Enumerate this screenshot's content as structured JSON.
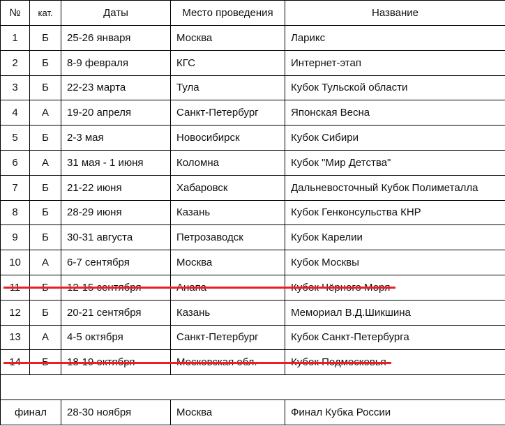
{
  "headers": {
    "num": "№",
    "cat": "кат.",
    "dates": "Даты",
    "place": "Место проведения",
    "name": "Название"
  },
  "rows": [
    {
      "num": "1",
      "cat": "Б",
      "dates": "25-26 января",
      "place": "Москва",
      "name": "Ларикс",
      "cancelled": false
    },
    {
      "num": "2",
      "cat": "Б",
      "dates": "8-9 февраля",
      "place": "КГС",
      "name": "Интернет-этап",
      "cancelled": false
    },
    {
      "num": "3",
      "cat": "Б",
      "dates": "22-23 марта",
      "place": "Тула",
      "name": "Кубок Тульской области",
      "cancelled": false
    },
    {
      "num": "4",
      "cat": "А",
      "dates": "19-20 апреля",
      "place": "Санкт-Петербург",
      "name": "Японская Весна",
      "cancelled": false
    },
    {
      "num": "5",
      "cat": "Б",
      "dates": "2-3 мая",
      "place": "Новосибирск",
      "name": "Кубок Сибири",
      "cancelled": false
    },
    {
      "num": "6",
      "cat": "А",
      "dates": "31 мая - 1 июня",
      "place": "Коломна",
      "name": "Кубок \"Мир Детства\"",
      "cancelled": false
    },
    {
      "num": "7",
      "cat": "Б",
      "dates": "21-22 июня",
      "place": "Хабаровск",
      "name": "Дальневосточный Кубок Полиметалла",
      "cancelled": false
    },
    {
      "num": "8",
      "cat": "Б",
      "dates": "28-29 июня",
      "place": "Казань",
      "name": "Кубок Генконсульства КНР",
      "cancelled": false
    },
    {
      "num": "9",
      "cat": "Б",
      "dates": "30-31 августа",
      "place": "Петрозаводск",
      "name": "Кубок Карелии",
      "cancelled": false
    },
    {
      "num": "10",
      "cat": "А",
      "dates": "6-7 сентября",
      "place": "Москва",
      "name": "Кубок Москвы",
      "cancelled": false
    },
    {
      "num": "11",
      "cat": "Б",
      "dates": "12-15 сентября",
      "place": "Анапа",
      "name": "Кубок Чёрного Моря",
      "cancelled": true
    },
    {
      "num": "12",
      "cat": "Б",
      "dates": "20-21 сентября",
      "place": "Казань",
      "name": "Мемориал В.Д.Шикшина",
      "cancelled": false
    },
    {
      "num": "13",
      "cat": "А",
      "dates": "4-5 октября",
      "place": "Санкт-Петербург",
      "name": "Кубок Санкт-Петербурга",
      "cancelled": false
    },
    {
      "num": "14",
      "cat": "Б",
      "dates": "18-19 октября",
      "place": "Московская обл.",
      "name": "Кубок Подмосковья",
      "cancelled": true
    }
  ],
  "final": {
    "label": "финал",
    "dates": "28-30 ноября",
    "place": "Москва",
    "name": "Финал Кубка России"
  },
  "strike_color": "#ee1c25"
}
